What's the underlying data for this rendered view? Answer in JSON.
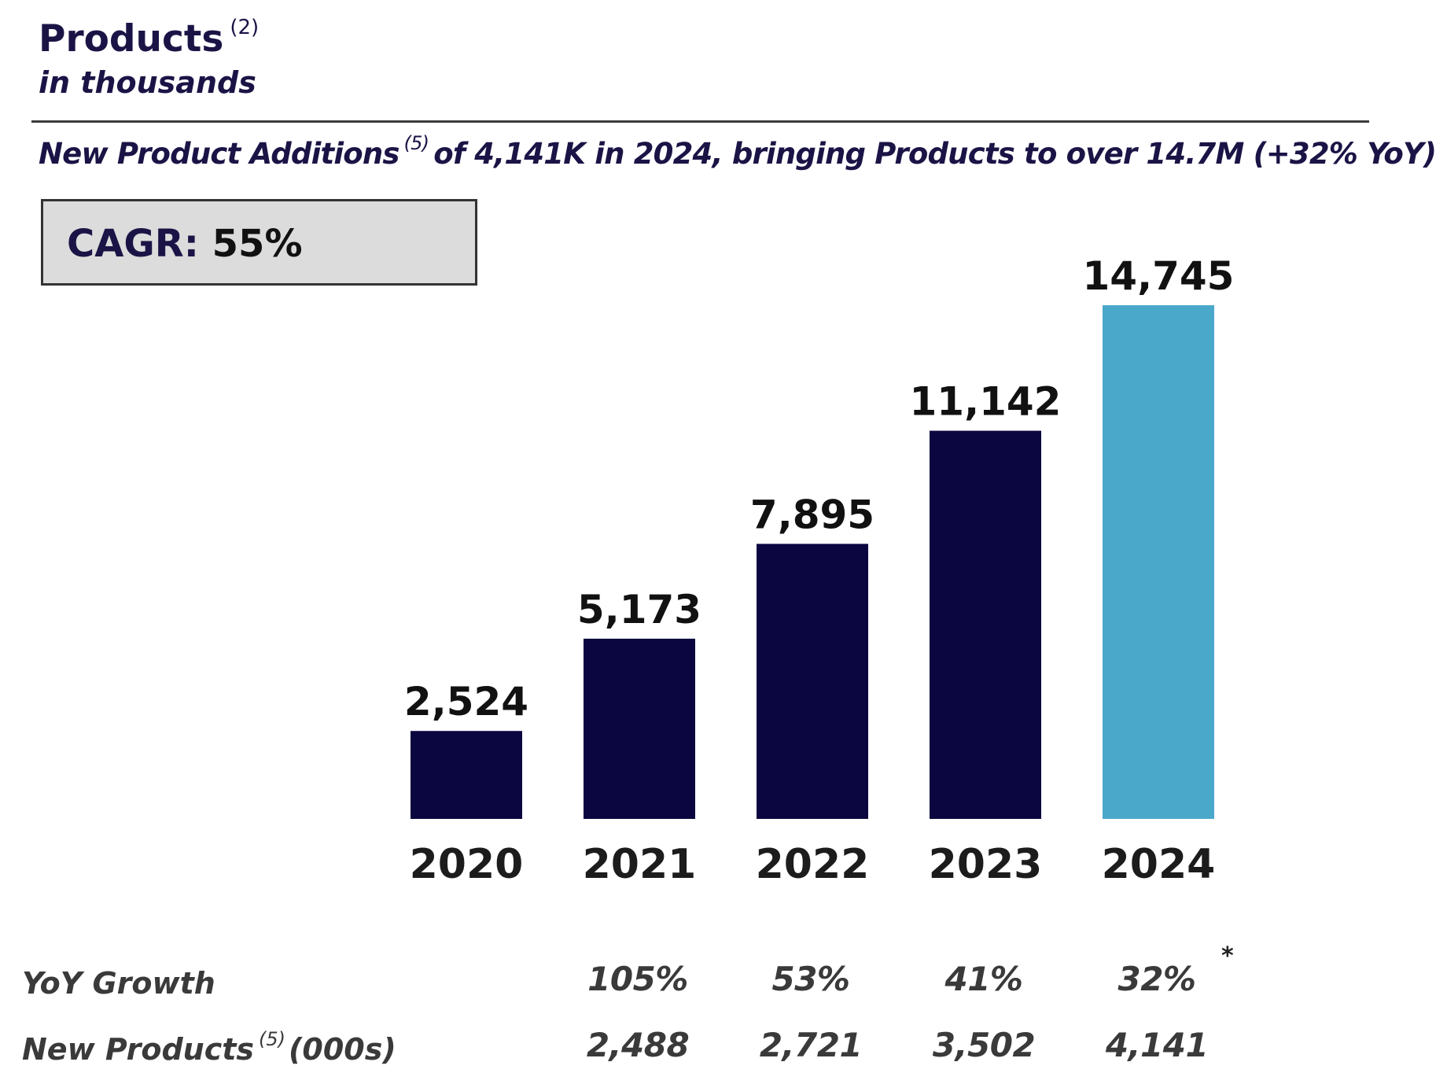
{
  "header": {
    "title": "Products",
    "title_footnote": "(2)",
    "subtitle": "in thousands",
    "headline_part1": "New Product Additions",
    "headline_footnote": "(5)",
    "headline_part2": "of 4,141K in 2024, bringing Products to over 14.7M (+32% YoY)"
  },
  "cagr": {
    "label": "CAGR:",
    "value": "55%"
  },
  "chart_data": {
    "type": "bar",
    "categories": [
      "2020",
      "2021",
      "2022",
      "2023",
      "2024"
    ],
    "values": [
      2524,
      5173,
      7895,
      11142,
      14745
    ],
    "value_labels": [
      "2,524",
      "5,173",
      "7,895",
      "11,142",
      "14,745"
    ],
    "colors": [
      "#0b0640",
      "#0b0640",
      "#0b0640",
      "#0b0640",
      "#4aa8cb"
    ],
    "highlight_category": "2024",
    "title": "Products",
    "xlabel": "",
    "ylabel": "",
    "ylim": [
      0,
      14745
    ],
    "grid": false,
    "legend": "none"
  },
  "table": {
    "yoy_label": "YoY Growth",
    "yoy_values": [
      "",
      "105%",
      "53%",
      "41%",
      "32%"
    ],
    "yoy_note": "*",
    "new_label": "New Products",
    "new_footnote": "(5)",
    "new_unit": "(000s)",
    "new_values": [
      "",
      "2,488",
      "2,721",
      "3,502",
      "4,141"
    ]
  },
  "colors": {
    "navy": "#0b0640",
    "highlight": "#4aa8cb",
    "text_navy": "#1a1446",
    "cagr_box": "#dcdcdc"
  }
}
